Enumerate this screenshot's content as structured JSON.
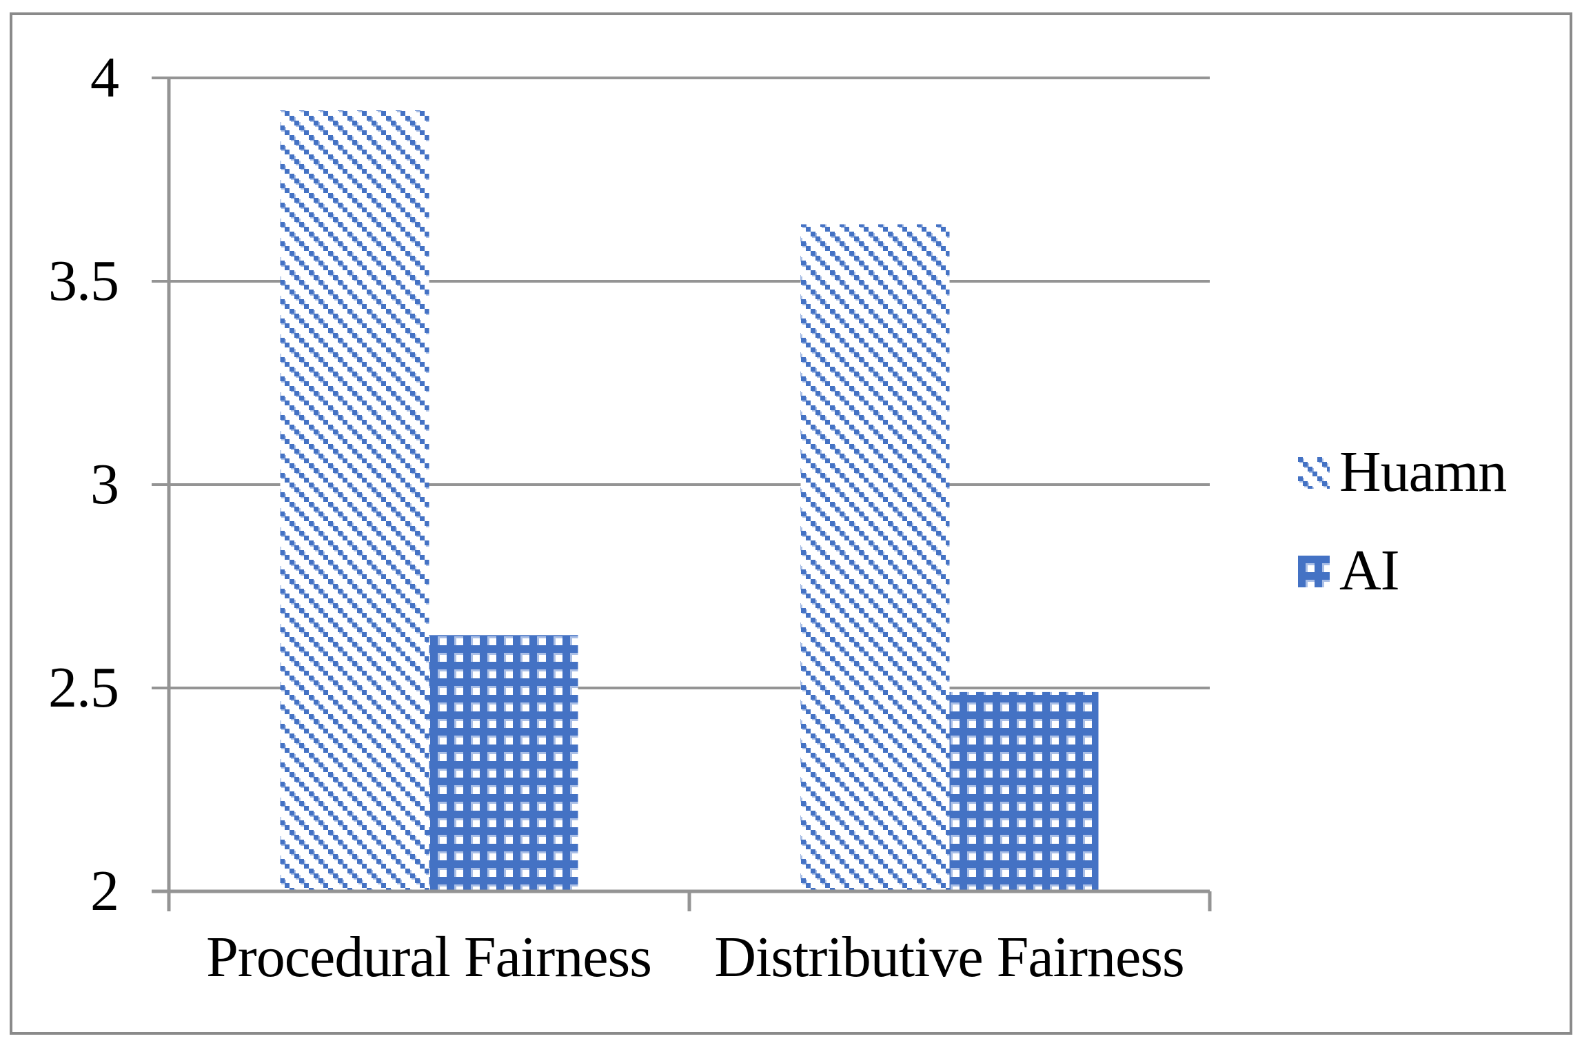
{
  "chart_data": {
    "type": "bar",
    "title": "",
    "xlabel": "",
    "ylabel": "",
    "categories": [
      "Procedural Fairness",
      "Distributive Fairness"
    ],
    "series": [
      {
        "name": "Huamn",
        "pattern": "diagonal-dash",
        "values": [
          3.92,
          3.64
        ]
      },
      {
        "name": "AI",
        "pattern": "grid",
        "values": [
          2.63,
          2.49
        ]
      }
    ],
    "ylim": [
      2,
      4
    ],
    "yticks": [
      2,
      2.5,
      3,
      3.5,
      4
    ],
    "ytick_labels": [
      "2",
      "2.5",
      "3",
      "3.5",
      "4"
    ],
    "grid": true,
    "legend_position": "right",
    "colors": {
      "bar_blue": "#4472C4",
      "bar_blue_light": "#aabfe6",
      "gridline_gray": "#949494",
      "frame_gray": "#8a8a8a",
      "text_black": "#000000"
    }
  }
}
